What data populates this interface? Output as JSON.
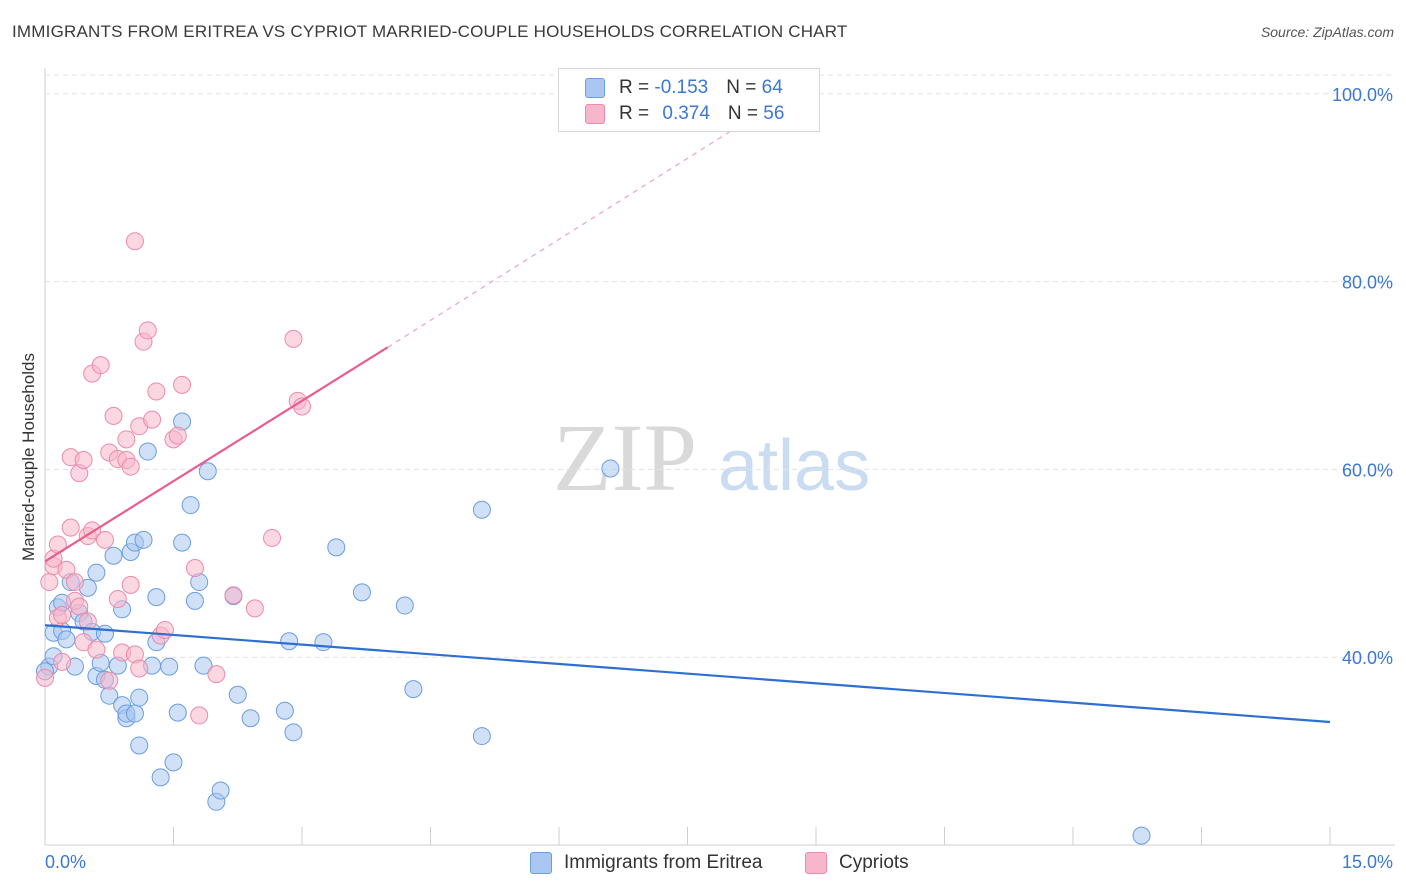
{
  "title": "IMMIGRANTS FROM ERITREA VS CYPRIOT MARRIED-COUPLE HOUSEHOLDS CORRELATION CHART",
  "source": "Source: ZipAtlas.com",
  "watermark": {
    "zip": "ZIP",
    "atlas": "atlas"
  },
  "legend": {
    "rows": [
      {
        "r_label": "R = ",
        "r_value": "-0.153",
        "n_label": "N = ",
        "n_value": "64",
        "color": "#a9c7f0"
      },
      {
        "r_label": "R = ",
        "r_value": "0.374",
        "n_label": "N = ",
        "n_value": "56",
        "color": "#f7b6cb"
      }
    ]
  },
  "bottom_legend": [
    {
      "label": "Immigrants from Eritrea",
      "color": "#a9c7f0"
    },
    {
      "label": "Cypriots",
      "color": "#f7b6cb"
    }
  ],
  "chart_data": {
    "type": "scatter",
    "title": "IMMIGRANTS FROM ERITREA VS CYPRIOT MARRIED-COUPLE HOUSEHOLDS CORRELATION CHART",
    "xlabel": "",
    "ylabel": "Married-couple Households",
    "xlim": [
      0,
      15
    ],
    "ylim": [
      20,
      102
    ],
    "x_tick_labels": [
      "0.0%",
      "15.0%"
    ],
    "y_ticks": [
      40,
      60,
      80,
      100
    ],
    "y_tick_labels": [
      "40.0%",
      "60.0%",
      "80.0%",
      "100.0%"
    ],
    "grid": true,
    "series": [
      {
        "name": "Immigrants from Eritrea",
        "color": "#a9c7f0",
        "stroke": "#6a9ee0",
        "trend": {
          "x": [
            0,
            15
          ],
          "y": [
            43.4,
            33.1
          ],
          "color": "#2f6fd0"
        },
        "points": [
          [
            0.05,
            39.0
          ],
          [
            0.1,
            40.1
          ],
          [
            0.1,
            42.6
          ],
          [
            0.15,
            45.3
          ],
          [
            0.2,
            42.8
          ],
          [
            0.25,
            41.9
          ],
          [
            0.2,
            45.8
          ],
          [
            0.3,
            48.0
          ],
          [
            0.35,
            39.0
          ],
          [
            0.4,
            44.7
          ],
          [
            0.45,
            43.8
          ],
          [
            0.5,
            47.4
          ],
          [
            0.55,
            42.7
          ],
          [
            0.6,
            38.0
          ],
          [
            0.65,
            39.4
          ],
          [
            0.6,
            49.0
          ],
          [
            0.7,
            42.5
          ],
          [
            0.7,
            37.6
          ],
          [
            0.75,
            35.9
          ],
          [
            0.8,
            50.8
          ],
          [
            0.85,
            39.1
          ],
          [
            0.9,
            45.1
          ],
          [
            0.9,
            34.9
          ],
          [
            0.95,
            33.5
          ],
          [
            0.95,
            34.0
          ],
          [
            1.0,
            51.2
          ],
          [
            1.05,
            52.2
          ],
          [
            1.05,
            34.0
          ],
          [
            1.1,
            30.6
          ],
          [
            1.1,
            35.7
          ],
          [
            1.15,
            52.5
          ],
          [
            1.2,
            61.9
          ],
          [
            1.25,
            39.1
          ],
          [
            1.3,
            41.6
          ],
          [
            1.3,
            46.4
          ],
          [
            1.35,
            27.2
          ],
          [
            1.45,
            39.0
          ],
          [
            1.5,
            28.8
          ],
          [
            1.55,
            34.1
          ],
          [
            1.6,
            65.1
          ],
          [
            1.6,
            52.2
          ],
          [
            1.7,
            56.2
          ],
          [
            1.75,
            46.0
          ],
          [
            1.8,
            48.0
          ],
          [
            1.85,
            39.1
          ],
          [
            1.9,
            59.8
          ],
          [
            2.0,
            24.6
          ],
          [
            2.05,
            25.8
          ],
          [
            2.2,
            46.5
          ],
          [
            2.25,
            36.0
          ],
          [
            2.4,
            33.5
          ],
          [
            2.8,
            34.3
          ],
          [
            2.85,
            41.7
          ],
          [
            2.9,
            32.0
          ],
          [
            3.25,
            41.6
          ],
          [
            3.4,
            51.7
          ],
          [
            3.7,
            46.9
          ],
          [
            4.2,
            45.5
          ],
          [
            4.3,
            36.6
          ],
          [
            5.1,
            31.6
          ],
          [
            5.1,
            55.7
          ],
          [
            6.6,
            60.1
          ],
          [
            12.8,
            21.0
          ],
          [
            0.0,
            38.5
          ]
        ]
      },
      {
        "name": "Cypriots",
        "color": "#f7b6cb",
        "stroke": "#ee8aaa",
        "trend": {
          "x": [
            0,
            4.0
          ],
          "y": [
            50.2,
            73.0
          ],
          "color": "#e85e8e",
          "dashed_x": [
            4.0,
            8.0
          ],
          "dashed_y": [
            73.0,
            96.0
          ]
        },
        "points": [
          [
            0.0,
            37.8
          ],
          [
            0.05,
            48.0
          ],
          [
            0.1,
            49.7
          ],
          [
            0.1,
            50.5
          ],
          [
            0.15,
            52.0
          ],
          [
            0.15,
            44.2
          ],
          [
            0.2,
            44.5
          ],
          [
            0.25,
            49.3
          ],
          [
            0.3,
            53.8
          ],
          [
            0.3,
            61.3
          ],
          [
            0.35,
            46.0
          ],
          [
            0.35,
            48.0
          ],
          [
            0.4,
            45.4
          ],
          [
            0.4,
            59.6
          ],
          [
            0.45,
            61.0
          ],
          [
            0.45,
            41.6
          ],
          [
            0.5,
            52.9
          ],
          [
            0.5,
            43.8
          ],
          [
            0.55,
            53.5
          ],
          [
            0.55,
            70.2
          ],
          [
            0.6,
            40.8
          ],
          [
            0.65,
            71.1
          ],
          [
            0.7,
            52.5
          ],
          [
            0.75,
            61.8
          ],
          [
            0.75,
            37.5
          ],
          [
            0.8,
            65.7
          ],
          [
            0.85,
            61.1
          ],
          [
            0.85,
            46.2
          ],
          [
            0.9,
            40.5
          ],
          [
            0.95,
            63.2
          ],
          [
            0.95,
            61.0
          ],
          [
            1.0,
            47.7
          ],
          [
            1.0,
            60.3
          ],
          [
            1.05,
            40.3
          ],
          [
            1.05,
            84.3
          ],
          [
            1.1,
            64.6
          ],
          [
            1.1,
            38.8
          ],
          [
            1.15,
            73.6
          ],
          [
            1.2,
            74.8
          ],
          [
            1.25,
            65.3
          ],
          [
            1.3,
            68.3
          ],
          [
            1.35,
            42.3
          ],
          [
            1.4,
            42.9
          ],
          [
            1.5,
            63.2
          ],
          [
            1.55,
            63.6
          ],
          [
            1.6,
            69.0
          ],
          [
            1.75,
            49.5
          ],
          [
            1.8,
            33.8
          ],
          [
            2.0,
            38.2
          ],
          [
            2.2,
            46.6
          ],
          [
            2.45,
            45.2
          ],
          [
            2.65,
            52.7
          ],
          [
            2.9,
            73.9
          ],
          [
            2.95,
            67.3
          ],
          [
            3.0,
            66.7
          ],
          [
            0.2,
            39.5
          ]
        ]
      }
    ]
  }
}
